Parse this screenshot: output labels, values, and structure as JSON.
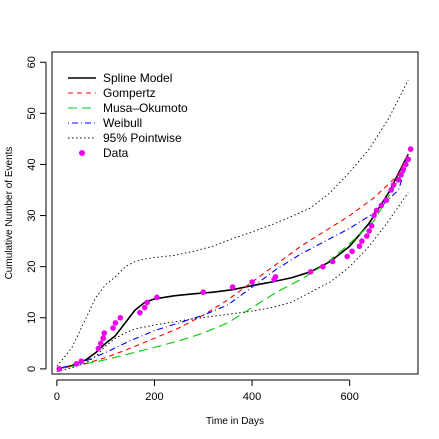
{
  "chart_data": {
    "type": "line",
    "title": "",
    "xlabel": "Time in Days",
    "ylabel": "Cumulative Number of Events",
    "xlim": [
      -10,
      740
    ],
    "ylim": [
      -1,
      62
    ],
    "x_ticks": [
      0,
      200,
      400,
      600
    ],
    "y_ticks": [
      0,
      10,
      20,
      30,
      40,
      50,
      60
    ],
    "grid": false,
    "legend_position": "top-left",
    "series": [
      {
        "name": "Spline Model",
        "style": "solid",
        "color": "#000000",
        "x": [
          0,
          30,
          60,
          80,
          100,
          120,
          140,
          160,
          180,
          200,
          240,
          280,
          320,
          360,
          400,
          440,
          480,
          520,
          560,
          600,
          640,
          680,
          720
        ],
        "y": [
          0,
          0.6,
          1.8,
          3.2,
          5.0,
          6.5,
          9.0,
          11.5,
          13.0,
          13.7,
          14.3,
          14.7,
          15.0,
          15.5,
          16.3,
          17.0,
          17.8,
          19.0,
          21.0,
          24.0,
          28.5,
          34.5,
          42.0
        ]
      },
      {
        "name": "Gompertz",
        "style": "dashed",
        "color": "#ff0000",
        "x": [
          0,
          50,
          100,
          150,
          200,
          250,
          300,
          350,
          400,
          450,
          500,
          550,
          600,
          650,
          700,
          720
        ],
        "y": [
          0,
          0.8,
          2.2,
          4.0,
          6.0,
          8.0,
          10.5,
          13.5,
          17.0,
          20.5,
          24.0,
          27.0,
          30.0,
          33.5,
          38.0,
          42.0
        ]
      },
      {
        "name": "Musa–Okumoto",
        "style": "longdash",
        "color": "#00cc00",
        "x": [
          0,
          50,
          100,
          150,
          200,
          250,
          300,
          350,
          400,
          450,
          500,
          550,
          600,
          650,
          700,
          720
        ],
        "y": [
          0,
          0.8,
          1.8,
          3.0,
          4.2,
          5.5,
          7.0,
          9.0,
          12.0,
          15.0,
          17.5,
          20.5,
          24.5,
          29.0,
          37.0,
          41.5
        ]
      },
      {
        "name": "Weibull",
        "style": "dotdash",
        "color": "#0000ff",
        "x": [
          0,
          50,
          100,
          150,
          200,
          250,
          300,
          350,
          400,
          450,
          500,
          550,
          600,
          650,
          700,
          720
        ],
        "y": [
          0,
          1.2,
          3.2,
          5.5,
          7.5,
          9.0,
          10.5,
          12.5,
          16.0,
          19.5,
          22.5,
          25.0,
          27.5,
          30.5,
          35.0,
          41.0
        ]
      },
      {
        "name": "95% Pointwise",
        "style": "dotted",
        "color": "#000000",
        "x": [
          0,
          30,
          60,
          80,
          100,
          120,
          140,
          160,
          180,
          200,
          240,
          280,
          320,
          360,
          400,
          440,
          480,
          520,
          560,
          600,
          640,
          680,
          720
        ],
        "y": [
          0.5,
          4.0,
          10.0,
          14.0,
          16.5,
          18.0,
          20.0,
          21.0,
          21.5,
          21.8,
          22.2,
          23.0,
          24.0,
          25.5,
          26.8,
          28.2,
          29.8,
          31.5,
          34.5,
          38.5,
          43.0,
          49.0,
          56.5
        ]
      },
      {
        "name": "",
        "style": "dotted",
        "color": "#000000",
        "legend": false,
        "x": [
          0,
          30,
          60,
          80,
          100,
          120,
          140,
          160,
          180,
          200,
          240,
          280,
          320,
          360,
          400,
          440,
          480,
          520,
          560,
          600,
          640,
          680,
          720
        ],
        "y": [
          -0.5,
          0.2,
          1.2,
          2.5,
          4.5,
          6.0,
          7.0,
          7.8,
          8.2,
          8.6,
          9.2,
          9.8,
          10.3,
          10.8,
          11.3,
          12.0,
          13.0,
          15.0,
          17.0,
          20.0,
          24.0,
          29.0,
          34.5
        ]
      },
      {
        "name": "Data",
        "style": "points",
        "color": "#ee00ee",
        "x": [
          5,
          40,
          50,
          85,
          90,
          95,
          97,
          115,
          120,
          130,
          170,
          180,
          185,
          205,
          300,
          360,
          400,
          445,
          448,
          520,
          545,
          565,
          595,
          605,
          620,
          625,
          635,
          640,
          645,
          650,
          655,
          665,
          675,
          685,
          690,
          700,
          705,
          710,
          715,
          720,
          725
        ],
        "y": [
          0,
          1,
          1.5,
          4,
          5,
          6,
          7,
          8,
          9,
          10,
          11,
          12,
          13,
          14,
          15,
          16,
          17,
          17.5,
          18,
          19,
          20,
          21,
          22,
          23,
          24,
          25,
          26,
          27,
          28,
          30,
          31,
          32,
          33,
          35,
          36,
          37,
          38,
          39,
          40,
          41,
          43
        ]
      }
    ]
  }
}
